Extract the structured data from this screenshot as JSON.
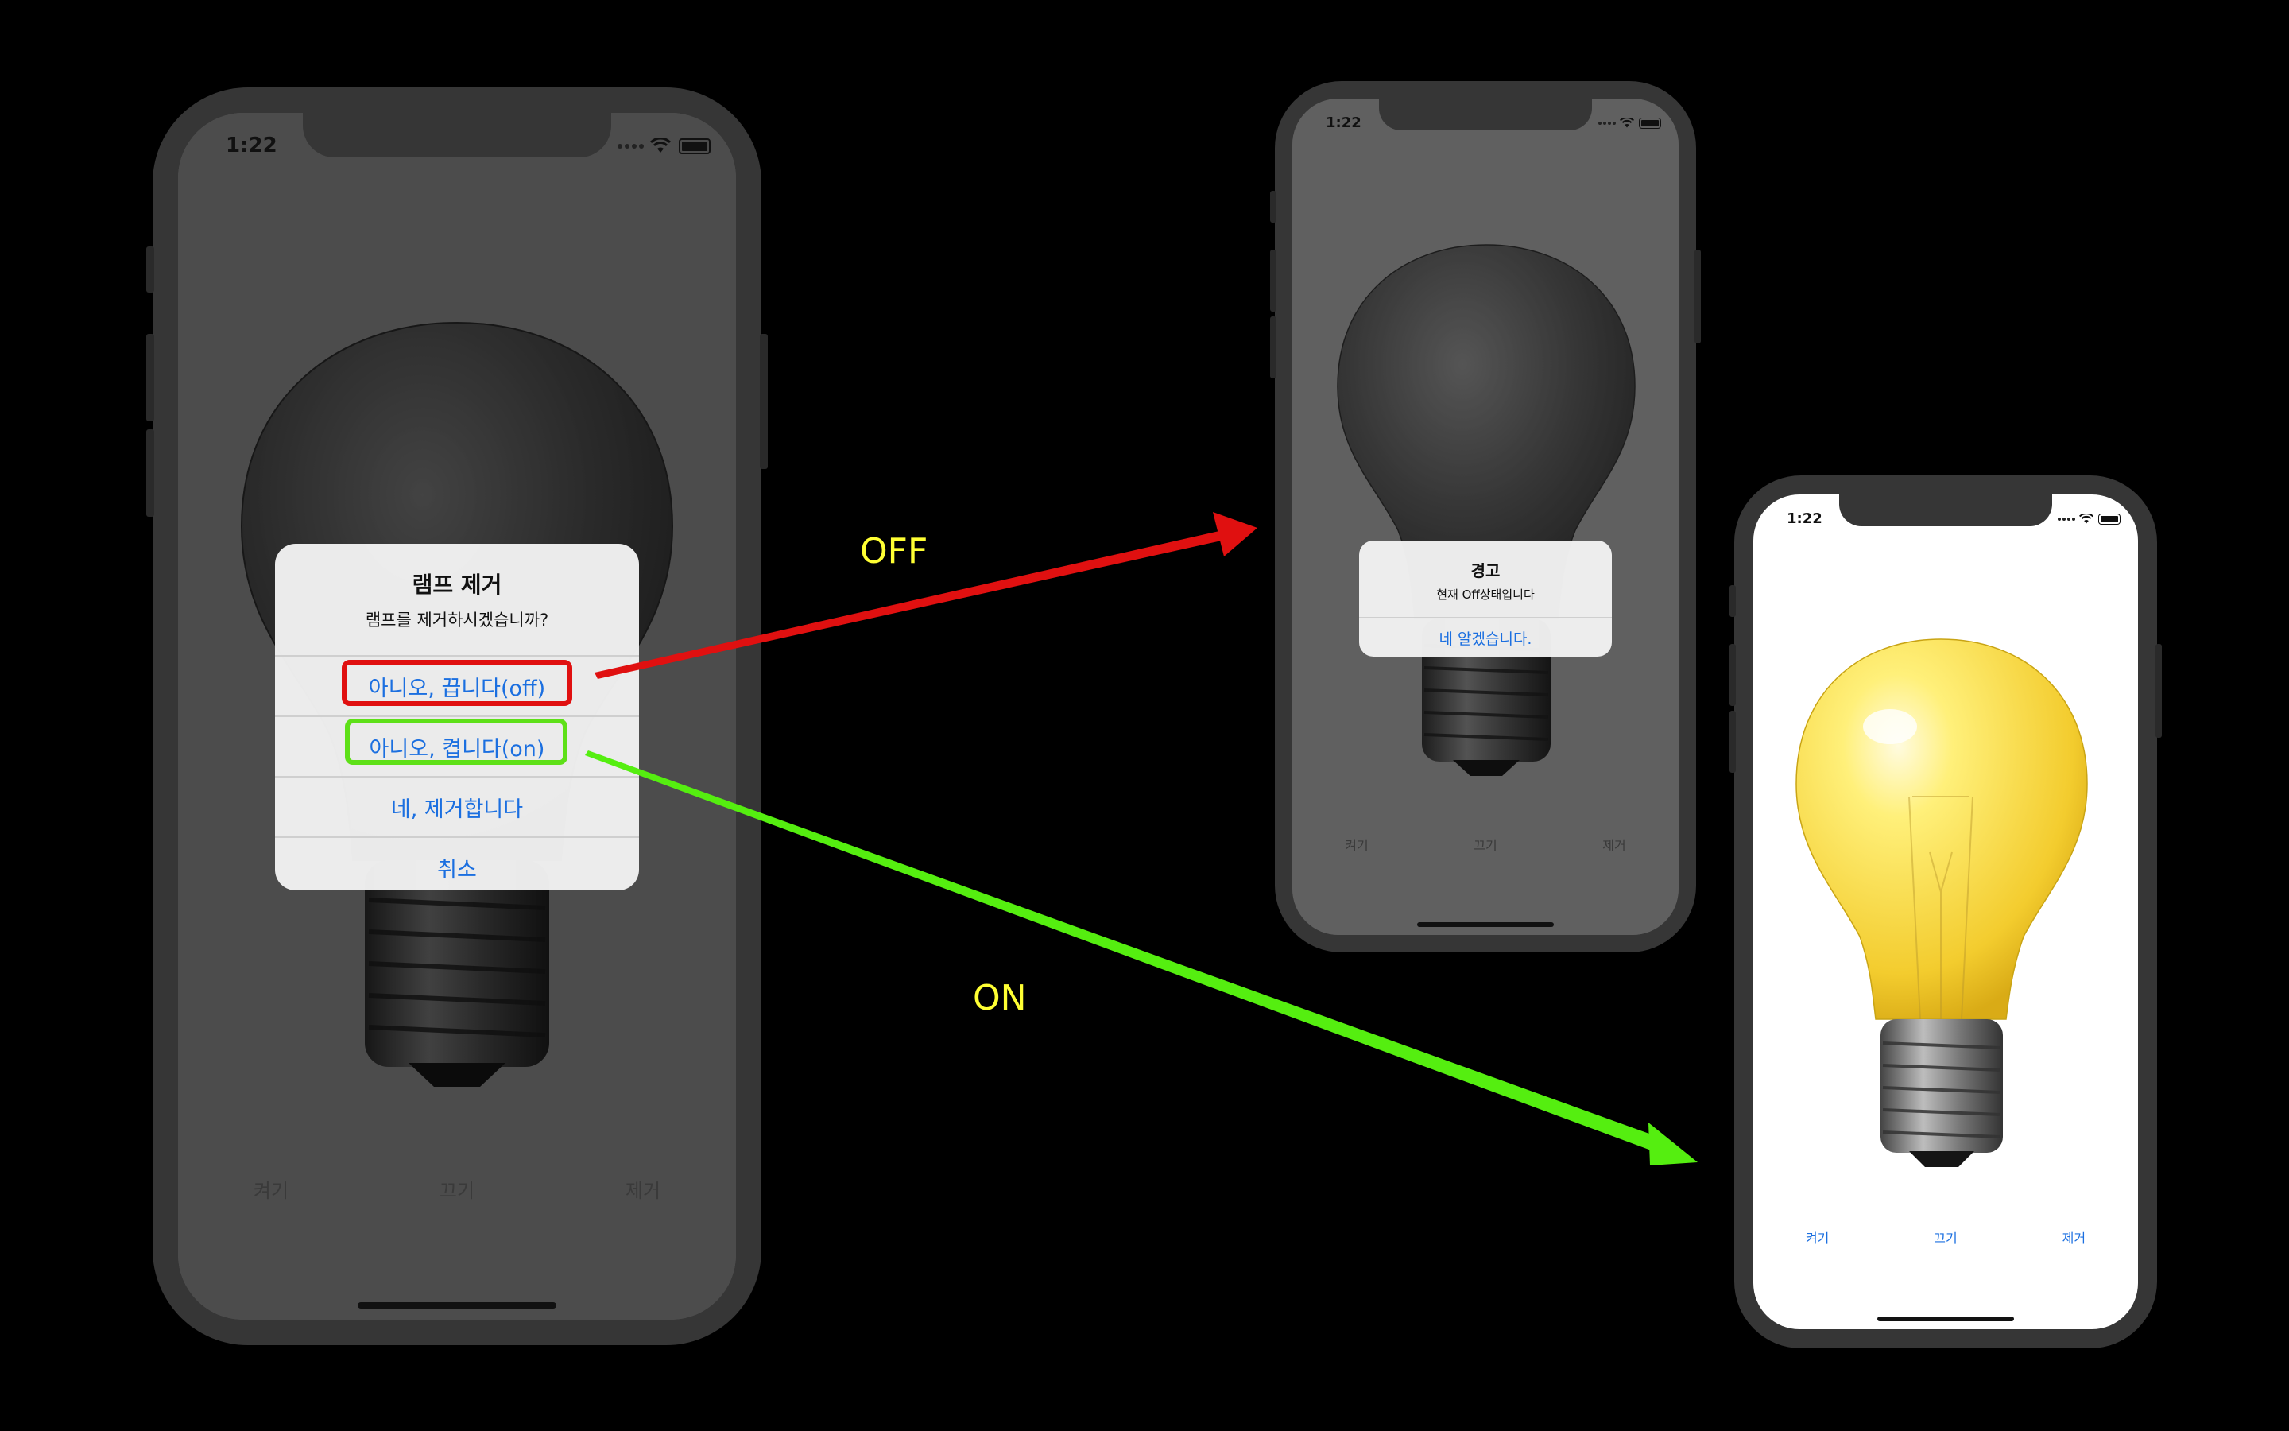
{
  "phones": {
    "left": {
      "time": "1:22",
      "alert": {
        "title": "램프 제거",
        "message": "램프를 제거하시겠습니까?",
        "actions": [
          "아니오, 끕니다(off)",
          "아니오, 켭니다(on)",
          "네, 제거합니다",
          "취소"
        ]
      },
      "toolbar": [
        "켜기",
        "끄기",
        "제거"
      ]
    },
    "middle": {
      "time": "1:22",
      "alert": {
        "title": "경고",
        "message": "현재 Off상태입니다",
        "actions": [
          "네 알겠습니다."
        ]
      },
      "toolbar": [
        "켜기",
        "끄기",
        "제거"
      ]
    },
    "right": {
      "time": "1:22",
      "toolbar": [
        "켜기",
        "끄기",
        "제거"
      ]
    }
  },
  "annotations": {
    "off_label": "OFF",
    "on_label": "ON"
  },
  "colors": {
    "link_blue": "#1b6fe0",
    "off_highlight": "#e01010",
    "on_highlight": "#5ee018",
    "off_arrow": "#e01010",
    "on_arrow": "#55ee10",
    "annotation_text": "#ffff33",
    "dim_screen": "#8a8a8a"
  },
  "icons": [
    "wifi-icon",
    "battery-icon",
    "signal-dots-icon",
    "light-bulb-off",
    "light-bulb-on"
  ]
}
